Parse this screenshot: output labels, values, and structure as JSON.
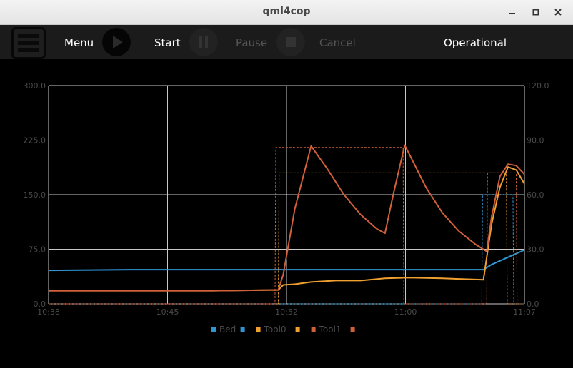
{
  "window": {
    "title": "qml4cop"
  },
  "toolbar": {
    "menu_label": "Menu",
    "start_label": "Start",
    "pause_label": "Pause",
    "cancel_label": "Cancel",
    "status": "Operational"
  },
  "colors": {
    "bed": "#2f96d4",
    "tool0": "#f0a030",
    "tool1": "#d2603a",
    "grid": "#c8c8c8",
    "axis_text": "#4a4a4a"
  },
  "chart_data": {
    "type": "line",
    "x_ticks": [
      "10:38",
      "10:45",
      "10:52",
      "11:00",
      "11:07"
    ],
    "x_range": [
      0,
      29
    ],
    "y_left": {
      "ticks": [
        "0.0",
        "75.0",
        "150.0",
        "225.0",
        "300.0"
      ],
      "range": [
        0,
        300
      ]
    },
    "y_right": {
      "ticks": [
        "0.0",
        "30.0",
        "60.0",
        "90.0",
        "120.0"
      ],
      "range": [
        0,
        120
      ]
    },
    "grid": true,
    "legend_position": "bottom",
    "legend": [
      "Bed",
      "Tool0",
      "Tool1"
    ],
    "series": [
      {
        "name": "Bed",
        "kind": "actual",
        "color": "#2f96d4",
        "x": [
          0,
          5,
          9,
          14,
          18,
          22,
          26.5,
          27,
          28,
          29
        ],
        "y": [
          46,
          47,
          47,
          47,
          47,
          47,
          47,
          54,
          64,
          74
        ]
      },
      {
        "name": "Bed",
        "kind": "target",
        "color": "#2f96d4",
        "x": [
          0,
          26.4,
          26.45,
          28.3,
          28.35,
          29
        ],
        "y": [
          0,
          0,
          150,
          150,
          0,
          0
        ]
      },
      {
        "name": "Tool0",
        "kind": "actual",
        "color": "#f0a030",
        "x": [
          0,
          5,
          10,
          14,
          14.3,
          15,
          16,
          17.5,
          19,
          20.5,
          22,
          24,
          26.5,
          27,
          27.5,
          28,
          28.5,
          29
        ],
        "y": [
          18,
          18,
          18,
          19,
          26,
          27,
          30,
          32,
          32,
          35,
          36,
          35,
          33,
          110,
          160,
          188,
          184,
          165
        ]
      },
      {
        "name": "Tool0",
        "kind": "target",
        "color": "#f0a030",
        "x": [
          0,
          14.0,
          14.05,
          26.6,
          26.65,
          27.9,
          27.95,
          29
        ],
        "y": [
          0,
          0,
          180,
          180,
          180,
          180,
          0,
          0
        ]
      },
      {
        "name": "Tool1",
        "kind": "actual",
        "color": "#d2603a",
        "x": [
          0,
          5,
          10,
          14,
          14.3,
          15,
          16,
          17,
          18,
          19,
          20,
          20.5,
          21,
          21.7,
          22,
          23,
          24,
          25,
          26,
          26.7,
          27,
          27.5,
          28,
          28.5,
          29
        ],
        "y": [
          18,
          18,
          18,
          19,
          40,
          130,
          217,
          185,
          150,
          123,
          103,
          97,
          150,
          218,
          205,
          160,
          125,
          100,
          82,
          72,
          120,
          175,
          192,
          190,
          178
        ]
      },
      {
        "name": "Tool1",
        "kind": "target",
        "color": "#d2603a",
        "x": [
          0,
          13.8,
          13.85,
          14.2,
          14.25,
          21.6,
          21.65,
          26.7,
          26.75,
          28.5,
          28.55,
          29
        ],
        "y": [
          0,
          0,
          215,
          215,
          215,
          215,
          0,
          0,
          180,
          180,
          0,
          0
        ]
      }
    ]
  }
}
